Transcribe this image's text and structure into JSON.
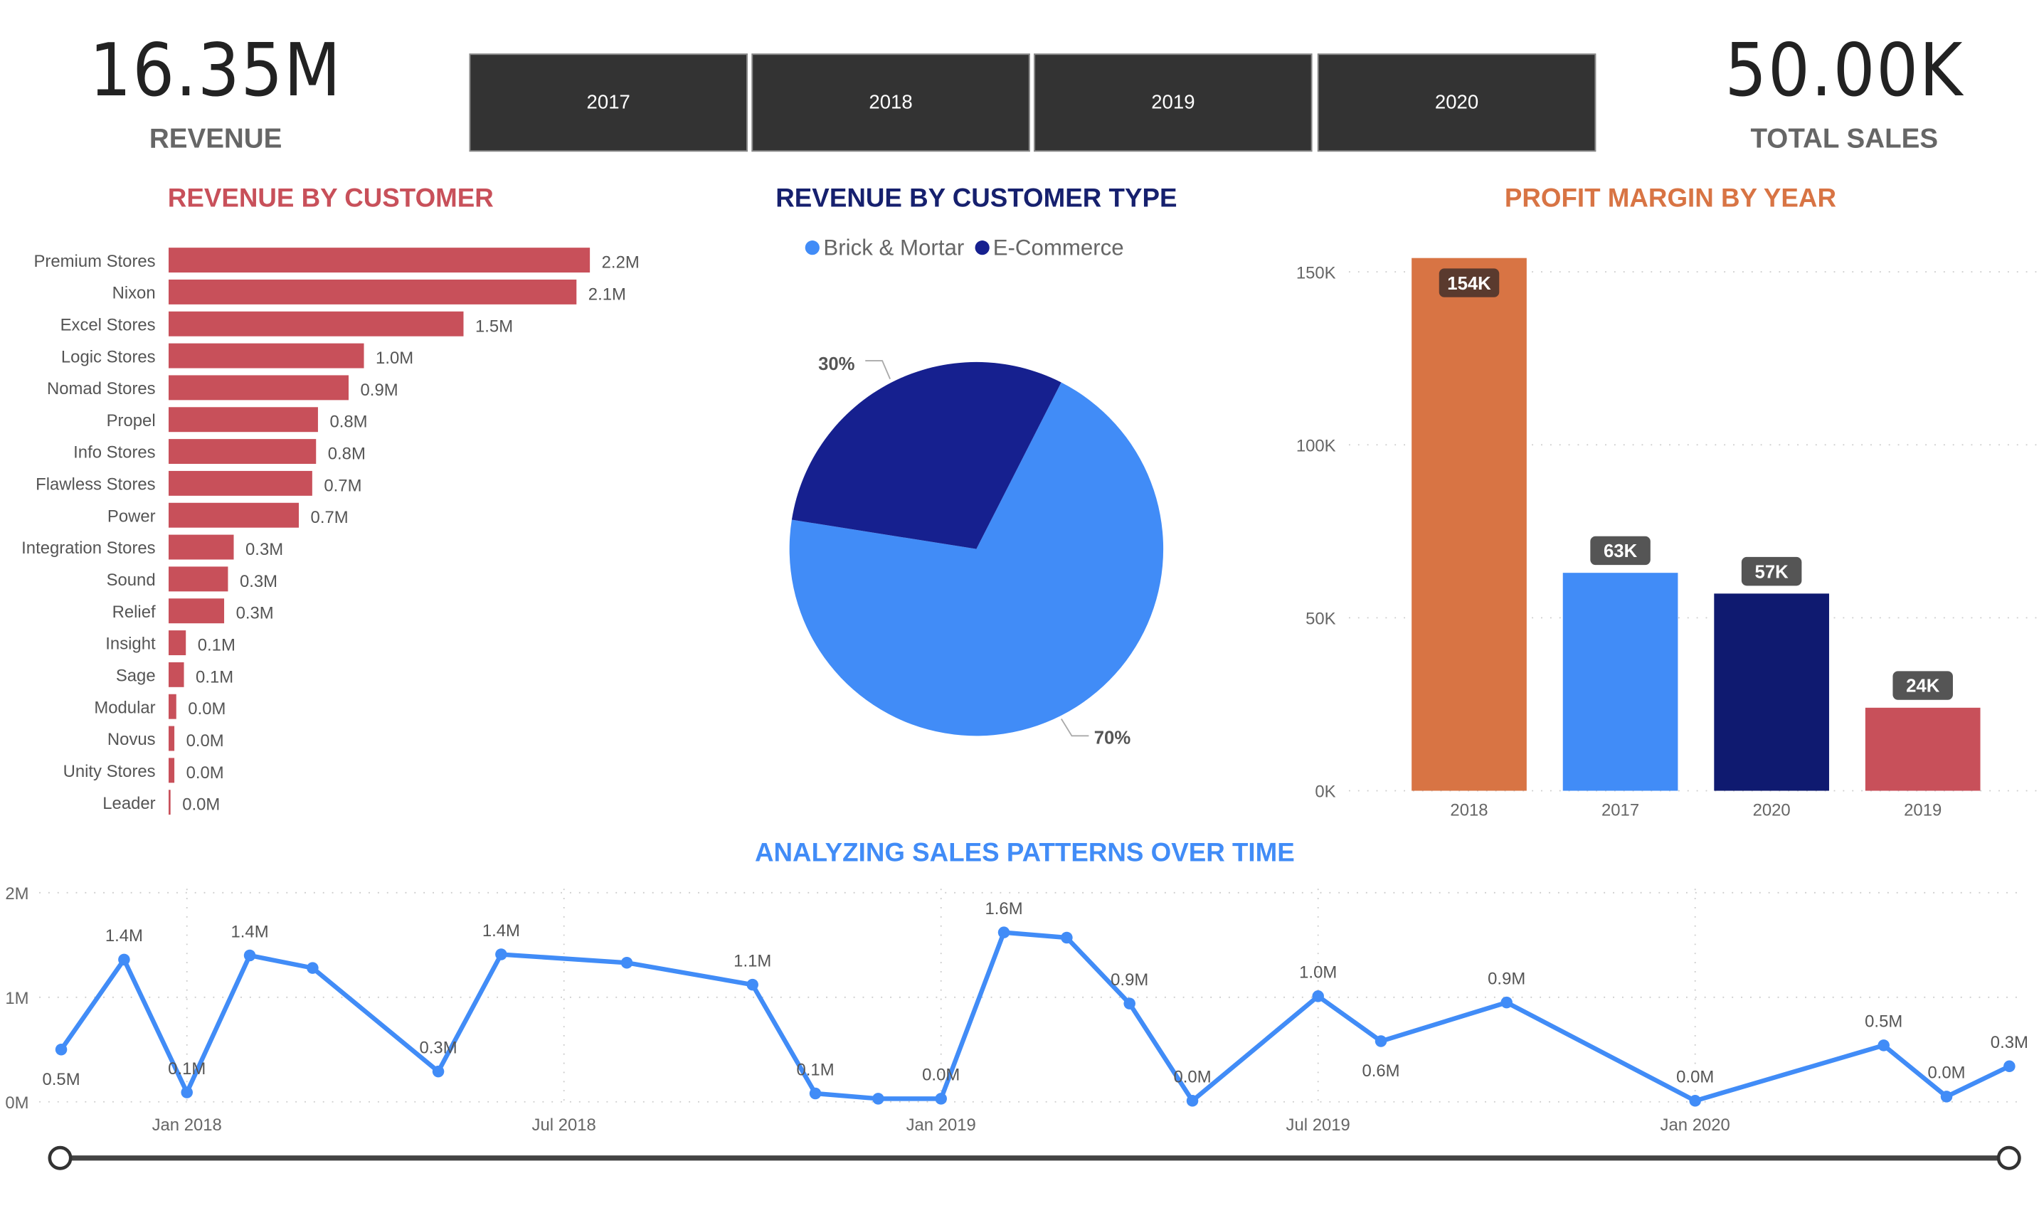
{
  "kpis": {
    "revenue": {
      "value": "16.35M",
      "label": "REVENUE"
    },
    "total_sales": {
      "value": "50.00K",
      "label": "TOTAL SALES"
    }
  },
  "year_filter": [
    "2017",
    "2018",
    "2019",
    "2020"
  ],
  "colors": {
    "red": "#C8505A",
    "blue": "#418CF7",
    "navy": "#16208F",
    "orange": "#D87444",
    "dark_navy": "#0F1A70",
    "button": "#333333"
  },
  "chart_data": [
    {
      "type": "bar",
      "orientation": "horizontal",
      "title": "REVENUE BY CUSTOMER",
      "categories": [
        "Premium Stores",
        "Nixon",
        "Excel Stores",
        "Logic Stores",
        "Nomad Stores",
        "Propel",
        "Info Stores",
        "Flawless Stores",
        "Power",
        "Integration Stores",
        "Sound",
        "Relief",
        "Insight",
        "Sage",
        "Modular",
        "Novus",
        "Unity Stores",
        "Leader"
      ],
      "values": [
        2.2,
        2.13,
        1.54,
        1.02,
        0.94,
        0.78,
        0.77,
        0.75,
        0.68,
        0.34,
        0.31,
        0.29,
        0.09,
        0.08,
        0.04,
        0.03,
        0.03,
        0.01
      ],
      "data_labels": [
        "2.2M",
        "2.1M",
        "1.5M",
        "1.0M",
        "0.9M",
        "0.8M",
        "0.8M",
        "0.7M",
        "0.7M",
        "0.3M",
        "0.3M",
        "0.3M",
        "0.1M",
        "0.1M",
        "0.0M",
        "0.0M",
        "0.0M",
        "0.0M"
      ],
      "unit": "M",
      "color": "#C8505A"
    },
    {
      "type": "pie",
      "title": "REVENUE BY CUSTOMER TYPE",
      "legend_position": "top",
      "slices": [
        {
          "name": "Brick & Mortar",
          "value": 70,
          "label": "70%",
          "color": "#418CF7"
        },
        {
          "name": "E-Commerce",
          "value": 30,
          "label": "30%",
          "color": "#16208F"
        }
      ]
    },
    {
      "type": "bar",
      "title": "PROFIT MARGIN BY YEAR",
      "categories": [
        "2018",
        "2017",
        "2020",
        "2019"
      ],
      "values": [
        154,
        63,
        57,
        24
      ],
      "data_labels": [
        "154K",
        "63K",
        "57K",
        "24K"
      ],
      "colors": [
        "#D87444",
        "#418CF7",
        "#0F1A70",
        "#C8505A"
      ],
      "ylim": [
        0,
        150
      ],
      "yticks": [
        "0K",
        "50K",
        "100K",
        "150K"
      ],
      "grid": true
    },
    {
      "type": "line",
      "title": "ANALYZING SALES PATTERNS OVER TIME",
      "x": [
        "2017-11",
        "2017-12",
        "2018-01",
        "2018-02",
        "2018-03",
        "2018-05",
        "2018-06",
        "2018-08",
        "2018-10",
        "2018-11",
        "2018-12",
        "2019-01",
        "2019-02",
        "2019-03",
        "2019-04",
        "2019-05",
        "2019-07",
        "2019-08",
        "2019-10",
        "2020-01",
        "2020-04",
        "2020-05",
        "2020-06"
      ],
      "values": [
        0.5,
        1.36,
        0.09,
        1.4,
        1.28,
        0.29,
        1.41,
        1.33,
        1.12,
        0.08,
        0.03,
        0.03,
        1.62,
        1.57,
        0.94,
        0.01,
        1.01,
        0.58,
        0.95,
        0.01,
        0.54,
        0.05,
        0.34
      ],
      "data_labels": [
        "0.5M",
        "1.4M",
        "0.1M",
        "1.4M",
        "",
        "0.3M",
        "1.4M",
        "",
        "1.1M",
        "0.1M",
        "",
        "0.0M",
        "1.6M",
        "",
        "0.9M",
        "0.0M",
        "1.0M",
        "0.6M",
        "0.9M",
        "0.0M",
        "0.5M",
        "0.0M",
        "0.3M"
      ],
      "xticks": [
        "Jan 2018",
        "Jul 2018",
        "Jan 2019",
        "Jul 2019",
        "Jan 2020"
      ],
      "yticks": [
        "0M",
        "1M",
        "2M"
      ],
      "ylim": [
        0,
        2
      ],
      "grid": true,
      "color": "#418CF7"
    }
  ]
}
